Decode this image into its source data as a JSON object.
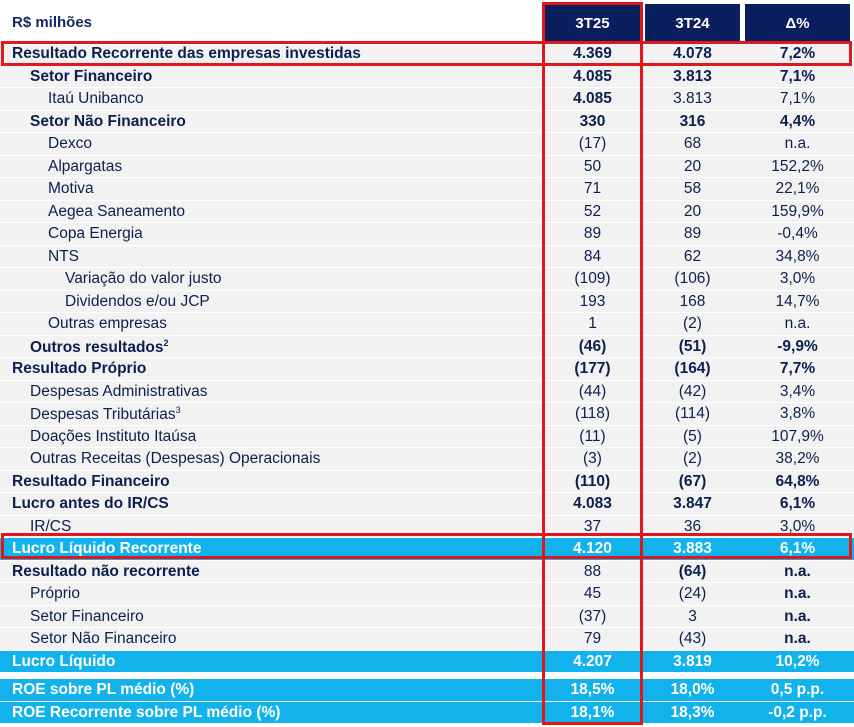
{
  "header": {
    "unit": "R$ milhões",
    "columns": [
      "3T25",
      "3T24",
      "Δ%"
    ]
  },
  "rows": [
    {
      "label": "Resultado Recorrente das empresas investidas",
      "level": 0,
      "values": [
        "4.369",
        "4.078",
        "7,2%"
      ],
      "bold": [
        1,
        1,
        1,
        1
      ]
    },
    {
      "label": "Setor Financeiro",
      "level": 1,
      "values": [
        "4.085",
        "3.813",
        "7,1%"
      ],
      "bold": [
        1,
        1,
        1,
        1
      ]
    },
    {
      "label": "Itaú Unibanco",
      "level": 2,
      "values": [
        "4.085",
        "3.813",
        "7,1%"
      ],
      "bold": [
        0,
        1,
        0,
        0
      ]
    },
    {
      "label": "Setor Não Financeiro",
      "level": 1,
      "values": [
        "330",
        "316",
        "4,4%"
      ],
      "bold": [
        1,
        1,
        1,
        1
      ]
    },
    {
      "label": "Dexco",
      "level": 2,
      "values": [
        "(17)",
        "68",
        "n.a."
      ],
      "bold": [
        0,
        0,
        0,
        0
      ]
    },
    {
      "label": "Alpargatas",
      "level": 2,
      "values": [
        "50",
        "20",
        "152,2%"
      ],
      "bold": [
        0,
        0,
        0,
        0
      ]
    },
    {
      "label": "Motiva",
      "level": 2,
      "values": [
        "71",
        "58",
        "22,1%"
      ],
      "bold": [
        0,
        0,
        0,
        0
      ]
    },
    {
      "label": "Aegea Saneamento",
      "level": 2,
      "values": [
        "52",
        "20",
        "159,9%"
      ],
      "bold": [
        0,
        0,
        0,
        0
      ]
    },
    {
      "label": "Copa Energia",
      "level": 2,
      "values": [
        "89",
        "89",
        "-0,4%"
      ],
      "bold": [
        0,
        0,
        0,
        0
      ]
    },
    {
      "label": "NTS",
      "level": 2,
      "values": [
        "84",
        "62",
        "34,8%"
      ],
      "bold": [
        0,
        0,
        0,
        0
      ]
    },
    {
      "label": "Variação do valor justo",
      "level": 3,
      "values": [
        "(109)",
        "(106)",
        "3,0%"
      ],
      "bold": [
        0,
        0,
        0,
        0
      ]
    },
    {
      "label": "Dividendos e/ou JCP",
      "level": 3,
      "values": [
        "193",
        "168",
        "14,7%"
      ],
      "bold": [
        0,
        0,
        0,
        0
      ]
    },
    {
      "label": "Outras empresas",
      "level": 2,
      "values": [
        "1",
        "(2)",
        "n.a."
      ],
      "bold": [
        0,
        0,
        0,
        0
      ]
    },
    {
      "label": "Outros resultados",
      "sup": "2",
      "level": 1,
      "values": [
        "(46)",
        "(51)",
        "-9,9%"
      ],
      "bold": [
        1,
        1,
        1,
        1
      ]
    },
    {
      "label": "Resultado Próprio",
      "level": 0,
      "values": [
        "(177)",
        "(164)",
        "7,7%"
      ],
      "bold": [
        1,
        1,
        1,
        1
      ]
    },
    {
      "label": "Despesas Administrativas",
      "level": 1,
      "values": [
        "(44)",
        "(42)",
        "3,4%"
      ],
      "bold": [
        0,
        0,
        0,
        0
      ]
    },
    {
      "label": "Despesas Tributárias",
      "sup": "3",
      "level": 1,
      "values": [
        "(118)",
        "(114)",
        "3,8%"
      ],
      "bold": [
        0,
        0,
        0,
        0
      ]
    },
    {
      "label": "Doações Instituto Itaúsa",
      "level": 1,
      "values": [
        "(11)",
        "(5)",
        "107,9%"
      ],
      "bold": [
        0,
        0,
        0,
        0
      ]
    },
    {
      "label": "Outras Receitas (Despesas) Operacionais",
      "level": 1,
      "values": [
        "(3)",
        "(2)",
        "38,2%"
      ],
      "bold": [
        0,
        0,
        0,
        0
      ]
    },
    {
      "label": "Resultado Financeiro",
      "level": 0,
      "values": [
        "(110)",
        "(67)",
        "64,8%"
      ],
      "bold": [
        1,
        1,
        1,
        1
      ]
    },
    {
      "label": "Lucro antes do IR/CS",
      "level": 0,
      "values": [
        "4.083",
        "3.847",
        "6,1%"
      ],
      "bold": [
        1,
        1,
        1,
        1
      ]
    },
    {
      "label": "IR/CS",
      "level": 1,
      "values": [
        "37",
        "36",
        "3,0%"
      ],
      "bold": [
        0,
        0,
        0,
        0
      ]
    },
    {
      "label": "Lucro Líquido Recorrente",
      "level": 0,
      "blue": true,
      "values": [
        "4.120",
        "3.883",
        "6,1%"
      ],
      "bold": [
        1,
        1,
        1,
        1
      ]
    },
    {
      "label": "Resultado não recorrente",
      "level": 0,
      "values": [
        "88",
        "(64)",
        "n.a."
      ],
      "bold": [
        1,
        0,
        1,
        1
      ]
    },
    {
      "label": "Próprio",
      "level": 1,
      "values": [
        "45",
        "(24)",
        "n.a."
      ],
      "bold": [
        0,
        0,
        0,
        1
      ]
    },
    {
      "label": "Setor Financeiro",
      "level": 1,
      "values": [
        "(37)",
        "3",
        "n.a."
      ],
      "bold": [
        0,
        0,
        0,
        1
      ]
    },
    {
      "label": "Setor Não Financeiro",
      "level": 1,
      "values": [
        "79",
        "(43)",
        "n.a."
      ],
      "bold": [
        0,
        0,
        0,
        1
      ]
    },
    {
      "label": "Lucro Líquido",
      "level": 0,
      "blue": true,
      "values": [
        "4.207",
        "3.819",
        "10,2%"
      ],
      "bold": [
        1,
        1,
        1,
        1
      ]
    },
    {
      "label": "ROE sobre PL médio (%)",
      "level": 0,
      "blue": true,
      "gap": true,
      "values": [
        "18,5%",
        "18,0%",
        "0,5 p.p."
      ],
      "bold": [
        1,
        1,
        1,
        1
      ]
    },
    {
      "label": "ROE Recorrente sobre PL médio (%)",
      "level": 0,
      "blue": true,
      "values": [
        "18,1%",
        "18,3%",
        "-0,2 p.p."
      ],
      "bold": [
        1,
        1,
        1,
        1
      ]
    }
  ],
  "colors": {
    "header": "#0b1f5e",
    "highlight": "#12b3ec",
    "annotation": "#e0171c"
  }
}
